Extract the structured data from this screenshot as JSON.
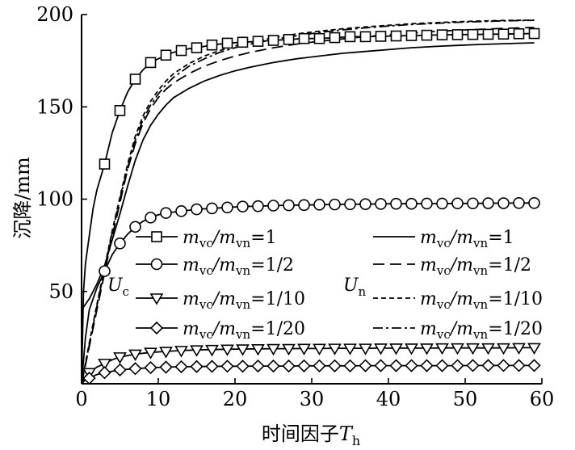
{
  "chart_data": {
    "type": "line",
    "xlabel": "时间因子",
    "xlabel_var": "T",
    "xlabel_sub": "h",
    "ylabel": "沉降/mm",
    "xlim": [
      0,
      60
    ],
    "ylim": [
      0,
      200
    ],
    "xticks": [
      0,
      10,
      20,
      30,
      40,
      50,
      60
    ],
    "yticks": [
      50,
      100,
      150,
      200
    ],
    "grid": false,
    "legend_placement": "lower center, two columns",
    "group_labels": {
      "Uc": {
        "var": "U",
        "sub": "c"
      },
      "Un": {
        "var": "U",
        "sub": "n"
      }
    },
    "legend": [
      {
        "text": "m_vc/m_vn=1",
        "var1": "m",
        "sub1": "vc",
        "var2": "m",
        "sub2": "vn",
        "ratio": "=1",
        "marker": "square",
        "dash": "solid",
        "group": "Uc"
      },
      {
        "text": "m_vc/m_vn=1/2",
        "var1": "m",
        "sub1": "vc",
        "var2": "m",
        "sub2": "vn",
        "ratio": "=1/2",
        "marker": "circle",
        "dash": "solid",
        "group": "Uc"
      },
      {
        "text": "m_vc/m_vn=1/10",
        "var1": "m",
        "sub1": "vc",
        "var2": "m",
        "sub2": "vn",
        "ratio": "=1/10",
        "marker": "triangle-down",
        "dash": "solid",
        "group": "Uc"
      },
      {
        "text": "m_vc/m_vn=1/20",
        "var1": "m",
        "sub1": "vc",
        "var2": "m",
        "sub2": "vn",
        "ratio": "=1/20",
        "marker": "diamond",
        "dash": "solid",
        "group": "Uc"
      },
      {
        "text": "m_vc/m_vn=1",
        "var1": "m",
        "sub1": "vc",
        "var2": "m",
        "sub2": "vn",
        "ratio": "=1",
        "marker": "none",
        "dash": "solid",
        "group": "Un"
      },
      {
        "text": "m_vc/m_vn=1/2",
        "var1": "m",
        "sub1": "vc",
        "var2": "m",
        "sub2": "vn",
        "ratio": "=1/2",
        "marker": "none",
        "dash": "long-dash",
        "group": "Un"
      },
      {
        "text": "m_vc/m_vn=1/10",
        "var1": "m",
        "sub1": "vc",
        "var2": "m",
        "sub2": "vn",
        "ratio": "=1/10",
        "marker": "none",
        "dash": "short-dash",
        "group": "Un"
      },
      {
        "text": "m_vc/m_vn=1/20",
        "var1": "m",
        "sub1": "vc",
        "var2": "m",
        "sub2": "vn",
        "ratio": "=1/20",
        "marker": "none",
        "dash": "dash-dot",
        "group": "Un"
      }
    ],
    "marker_x": [
      1,
      3,
      5,
      7,
      9,
      11,
      13,
      15,
      17,
      19,
      21,
      23,
      25,
      27,
      29,
      31,
      33,
      35,
      37,
      39,
      41,
      43,
      45,
      47,
      49,
      51,
      53,
      55,
      57,
      59
    ],
    "series": [
      {
        "group": "Uc",
        "ratio": "1",
        "marker": "square",
        "dash": "solid",
        "x": [
          0,
          0.25,
          0.5,
          1,
          1.5,
          2,
          3,
          4,
          5,
          6,
          7,
          8,
          9,
          10,
          11,
          12,
          13,
          14,
          15,
          17,
          19,
          21,
          23,
          25,
          27,
          29,
          31,
          33,
          35,
          37,
          39,
          41,
          43,
          45,
          47,
          49,
          51,
          53,
          55,
          57,
          59
        ],
        "y": [
          0,
          50,
          65,
          80,
          95,
          105,
          119,
          136,
          148,
          158,
          165,
          170,
          174,
          176,
          178,
          179.5,
          180.5,
          181.5,
          182,
          183.5,
          184.5,
          185,
          185.5,
          186,
          186.5,
          187,
          187,
          187.5,
          188,
          188,
          188.2,
          188.4,
          188.6,
          188.8,
          189,
          189.1,
          189.2,
          189.3,
          189.4,
          189.6,
          189.7
        ],
        "marker_x": [
          3,
          5,
          7,
          9,
          11,
          13,
          15,
          17,
          19,
          21,
          23,
          25,
          27,
          29,
          31,
          33,
          35,
          37,
          39,
          41,
          43,
          45,
          47,
          49,
          51,
          53,
          55,
          57,
          59
        ]
      },
      {
        "group": "Uc",
        "ratio": "1/2",
        "marker": "circle",
        "dash": "solid",
        "x": [
          0,
          0.5,
          1,
          2,
          3,
          4,
          5,
          6,
          7,
          8,
          9,
          10,
          11,
          13,
          15,
          17,
          19,
          21,
          23,
          25,
          27,
          29,
          31,
          33,
          35,
          37,
          39,
          41,
          43,
          45,
          47,
          49,
          51,
          53,
          55,
          57,
          59
        ],
        "y": [
          0,
          25,
          40,
          52,
          61,
          70,
          76,
          81,
          85,
          88,
          90,
          91.5,
          92.5,
          93.5,
          94.5,
          95,
          95.5,
          96,
          96.2,
          96.5,
          96.7,
          96.8,
          97,
          97.1,
          97.2,
          97.3,
          97.4,
          97.5,
          97.5,
          97.6,
          97.6,
          97.7,
          97.7,
          97.8,
          97.8,
          97.9,
          97.9
        ],
        "marker_x": [
          3,
          5,
          7,
          9,
          11,
          13,
          15,
          17,
          19,
          21,
          23,
          25,
          27,
          29,
          31,
          33,
          35,
          37,
          39,
          41,
          43,
          45,
          47,
          49,
          51,
          53,
          55,
          57,
          59
        ]
      },
      {
        "group": "Uc",
        "ratio": "1/10",
        "marker": "triangle-down",
        "dash": "solid",
        "x": [
          0,
          0.5,
          1,
          2,
          3,
          4,
          5,
          7,
          9,
          11,
          13,
          15,
          17,
          19,
          21,
          23,
          25,
          27,
          29,
          31,
          33,
          35,
          37,
          39,
          41,
          43,
          45,
          47,
          49,
          51,
          53,
          55,
          57,
          59
        ],
        "y": [
          0,
          4,
          6,
          9,
          11,
          13,
          14.5,
          16,
          17,
          17.5,
          18,
          18.3,
          18.5,
          18.7,
          18.8,
          18.9,
          19,
          19,
          19.1,
          19.1,
          19.2,
          19.2,
          19.2,
          19.3,
          19.3,
          19.3,
          19.3,
          19.4,
          19.4,
          19.4,
          19.4,
          19.4,
          19.5,
          19.5
        ],
        "marker_x": [
          1,
          3,
          5,
          7,
          9,
          11,
          13,
          15,
          17,
          19,
          21,
          23,
          25,
          27,
          29,
          31,
          33,
          35,
          37,
          39,
          41,
          43,
          45,
          47,
          49,
          51,
          53,
          55,
          57,
          59
        ]
      },
      {
        "group": "Uc",
        "ratio": "1/20",
        "marker": "diamond",
        "dash": "solid",
        "x": [
          0,
          0.5,
          1,
          2,
          3,
          5,
          7,
          9,
          11,
          13,
          15,
          17,
          19,
          21,
          23,
          25,
          27,
          29,
          31,
          33,
          35,
          37,
          39,
          41,
          43,
          45,
          47,
          49,
          51,
          53,
          55,
          57,
          59
        ],
        "y": [
          0,
          2,
          3,
          5,
          6,
          7.5,
          8.2,
          8.7,
          9,
          9.2,
          9.3,
          9.4,
          9.5,
          9.5,
          9.6,
          9.6,
          9.6,
          9.7,
          9.7,
          9.7,
          9.7,
          9.8,
          9.8,
          9.8,
          9.8,
          9.8,
          9.8,
          9.8,
          9.9,
          9.9,
          9.9,
          9.9,
          9.9
        ],
        "marker_x": [
          1,
          3,
          5,
          7,
          9,
          11,
          13,
          15,
          17,
          19,
          21,
          23,
          25,
          27,
          29,
          31,
          33,
          35,
          37,
          39,
          41,
          43,
          45,
          47,
          49,
          51,
          53,
          55,
          57,
          59
        ]
      },
      {
        "group": "Un",
        "ratio": "1",
        "marker": "none",
        "dash": "solid",
        "x": [
          0,
          1,
          2,
          3,
          4,
          5,
          6,
          7,
          8,
          9,
          10,
          11,
          12,
          14,
          16,
          18,
          20,
          22,
          25,
          28,
          31,
          34,
          37,
          40,
          43,
          46,
          49,
          52,
          55,
          59
        ],
        "y": [
          40,
          46,
          54,
          64,
          78,
          92,
          107,
          121,
          132,
          140,
          146,
          151,
          155,
          160,
          164,
          167,
          169.5,
          171.5,
          174,
          176,
          177.5,
          179,
          180,
          181,
          182,
          182.7,
          183.3,
          183.8,
          184.2,
          184.7
        ]
      },
      {
        "group": "Un",
        "ratio": "1/2",
        "marker": "none",
        "dash": "long-dash",
        "x": [
          0,
          1,
          2,
          3,
          4,
          5,
          6,
          7,
          8,
          9,
          10,
          11,
          12,
          14,
          16,
          18,
          20,
          22,
          25,
          28,
          31,
          34,
          37,
          40,
          43,
          46,
          49,
          52,
          55,
          59
        ],
        "y": [
          0,
          20,
          40,
          60,
          80,
          98,
          116,
          130,
          141,
          149,
          155,
          159.5,
          163,
          168,
          172,
          175,
          177.5,
          179.5,
          182,
          184,
          185.5,
          186.8,
          188,
          189,
          190,
          190.8,
          191.5,
          192,
          192.5,
          193
        ]
      },
      {
        "group": "Un",
        "ratio": "1/10",
        "marker": "none",
        "dash": "short-dash",
        "x": [
          0,
          1,
          2,
          3,
          4,
          5,
          6,
          7,
          8,
          9,
          10,
          11,
          12,
          14,
          16,
          18,
          20,
          22,
          25,
          28,
          31,
          34,
          37,
          40,
          43,
          46,
          49,
          52,
          55,
          59
        ],
        "y": [
          0,
          22,
          43,
          63,
          83,
          101,
          119,
          134,
          145,
          153,
          159,
          164,
          168,
          173.5,
          177.5,
          180.5,
          183,
          185,
          187.5,
          189.5,
          191,
          192.3,
          193.3,
          194.2,
          195,
          195.6,
          196.1,
          196.5,
          196.8,
          197
        ]
      },
      {
        "group": "Un",
        "ratio": "1/20",
        "marker": "none",
        "dash": "dash-dot",
        "x": [
          0,
          1,
          2,
          3,
          4,
          5,
          6,
          7,
          8,
          9,
          10,
          11,
          12,
          14,
          16,
          18,
          20,
          22,
          25,
          28,
          31,
          34,
          37,
          40,
          43,
          46,
          49,
          52,
          55,
          59
        ],
        "y": [
          0,
          21,
          42,
          62,
          82,
          100,
          117,
          132,
          143,
          151,
          157,
          162,
          166,
          172,
          176,
          179.5,
          182,
          184,
          186.5,
          188.5,
          190.3,
          191.7,
          192.8,
          193.8,
          194.6,
          195.2,
          195.8,
          196.2,
          196.6,
          196.9
        ]
      }
    ]
  }
}
